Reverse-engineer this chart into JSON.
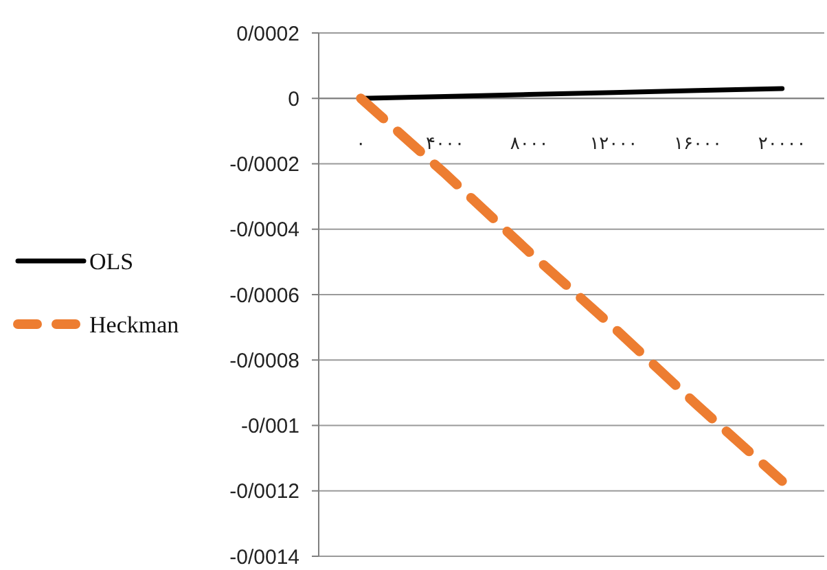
{
  "chart_data": {
    "type": "line",
    "categories": [
      "۰",
      "۴۰۰۰",
      "۸۰۰۰",
      "۱۲۰۰۰",
      "۱۶۰۰۰",
      "۲۰۰۰۰"
    ],
    "series": [
      {
        "name": "OLS",
        "color": "#000000",
        "line_style": "solid",
        "values": [
          0,
          6e-06,
          1.2e-05,
          1.8e-05,
          2.4e-05,
          3e-05
        ]
      },
      {
        "name": "Heckman",
        "color": "#ed7d31",
        "line_style": "dashed",
        "values": [
          0,
          -0.00023,
          -0.00047,
          -0.0007,
          -0.00094,
          -0.00117
        ]
      }
    ],
    "ylim": [
      -0.0014,
      0.0002
    ],
    "yticks": [
      {
        "value": 0.0002,
        "label": "0/0002"
      },
      {
        "value": 0,
        "label": "0"
      },
      {
        "value": -0.0002,
        "label": "-0/0002"
      },
      {
        "value": -0.0004,
        "label": "-0/0004"
      },
      {
        "value": -0.0006,
        "label": "-0/0006"
      },
      {
        "value": -0.0008,
        "label": "-0/0008"
      },
      {
        "value": -0.001,
        "label": "-0/001"
      },
      {
        "value": -0.0012,
        "label": "-0/0012"
      },
      {
        "value": -0.0014,
        "label": "-0/0014"
      }
    ],
    "grid": "y",
    "legend": "left",
    "marker": "none"
  }
}
